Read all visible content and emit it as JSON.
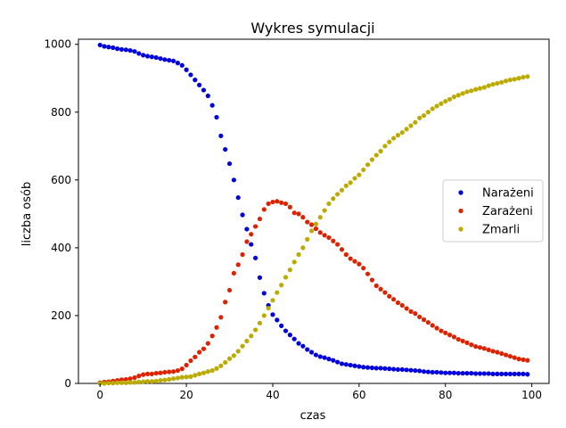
{
  "chart_data": {
    "type": "scatter",
    "title": "Wykres symulacji",
    "xlabel": "czas",
    "ylabel": "liczba osób",
    "xlim": [
      -5,
      104
    ],
    "ylim": [
      0,
      1015
    ],
    "xticks": [
      0,
      20,
      40,
      60,
      80,
      100
    ],
    "yticks": [
      0,
      200,
      400,
      600,
      800,
      1000
    ],
    "grid": false,
    "legend_position": "center-right",
    "x": [
      0,
      1,
      2,
      3,
      4,
      5,
      6,
      7,
      8,
      9,
      10,
      11,
      12,
      13,
      14,
      15,
      16,
      17,
      18,
      19,
      20,
      21,
      22,
      23,
      24,
      25,
      26,
      27,
      28,
      29,
      30,
      31,
      32,
      33,
      34,
      35,
      36,
      37,
      38,
      39,
      40,
      41,
      42,
      43,
      44,
      45,
      46,
      47,
      48,
      49,
      50,
      51,
      52,
      53,
      54,
      55,
      56,
      57,
      58,
      59,
      60,
      61,
      62,
      63,
      64,
      65,
      66,
      67,
      68,
      69,
      70,
      71,
      72,
      73,
      74,
      75,
      76,
      77,
      78,
      79,
      80,
      81,
      82,
      83,
      84,
      85,
      86,
      87,
      88,
      89,
      90,
      91,
      92,
      93,
      94,
      95,
      96,
      97,
      98,
      99
    ],
    "series": [
      {
        "name": "Narażeni",
        "color": "#0000dd",
        "values": [
          998,
          994,
          992,
          990,
          987,
          985,
          984,
          982,
          979,
          973,
          968,
          965,
          963,
          961,
          958,
          955,
          953,
          951,
          945,
          938,
          925,
          910,
          895,
          880,
          865,
          848,
          820,
          785,
          730,
          690,
          648,
          600,
          548,
          497,
          455,
          410,
          370,
          312,
          266,
          230,
          203,
          187,
          170,
          155,
          143,
          131,
          118,
          110,
          100,
          92,
          84,
          79,
          76,
          72,
          68,
          63,
          58,
          56,
          54,
          52,
          50,
          48,
          47,
          46,
          45,
          45,
          44,
          43,
          42,
          41,
          41,
          40,
          39,
          38,
          37,
          35,
          34,
          33,
          33,
          32,
          31,
          31,
          31,
          30,
          30,
          30,
          30,
          29,
          29,
          29,
          29,
          28,
          28,
          28,
          28,
          28,
          28,
          28,
          28,
          27
        ]
      },
      {
        "name": "Zarażeni",
        "color": "#dd2200",
        "values": [
          2,
          4,
          5,
          7,
          9,
          11,
          12,
          14,
          17,
          22,
          26,
          28,
          28,
          30,
          31,
          33,
          34,
          35,
          38,
          43,
          54,
          67,
          78,
          92,
          102,
          118,
          140,
          165,
          195,
          240,
          275,
          325,
          350,
          380,
          418,
          440,
          463,
          485,
          513,
          530,
          535,
          537,
          533,
          530,
          520,
          503,
          500,
          490,
          476,
          468,
          456,
          445,
          437,
          430,
          420,
          410,
          395,
          380,
          368,
          360,
          352,
          340,
          323,
          305,
          288,
          278,
          268,
          257,
          248,
          238,
          230,
          221,
          212,
          206,
          196,
          188,
          180,
          171,
          163,
          155,
          149,
          143,
          137,
          130,
          125,
          120,
          114,
          109,
          106,
          103,
          99,
          95,
          92,
          88,
          84,
          80,
          76,
          72,
          70,
          68
        ]
      },
      {
        "name": "Zmarli",
        "color": "#bbaa00",
        "values": [
          0,
          0,
          1,
          1,
          2,
          2,
          2,
          3,
          3,
          4,
          5,
          6,
          6,
          7,
          9,
          10,
          12,
          14,
          16,
          18,
          19,
          20,
          24,
          28,
          31,
          35,
          38,
          44,
          52,
          62,
          73,
          82,
          95,
          110,
          125,
          140,
          158,
          178,
          200,
          222,
          245,
          268,
          290,
          313,
          335,
          358,
          380,
          400,
          425,
          450,
          470,
          490,
          510,
          530,
          545,
          558,
          570,
          583,
          592,
          605,
          615,
          630,
          645,
          660,
          673,
          685,
          700,
          712,
          723,
          732,
          740,
          750,
          760,
          770,
          783,
          790,
          800,
          810,
          818,
          825,
          832,
          838,
          845,
          850,
          855,
          860,
          863,
          867,
          870,
          873,
          878,
          882,
          885,
          888,
          892,
          895,
          897,
          900,
          903,
          905
        ]
      }
    ]
  }
}
